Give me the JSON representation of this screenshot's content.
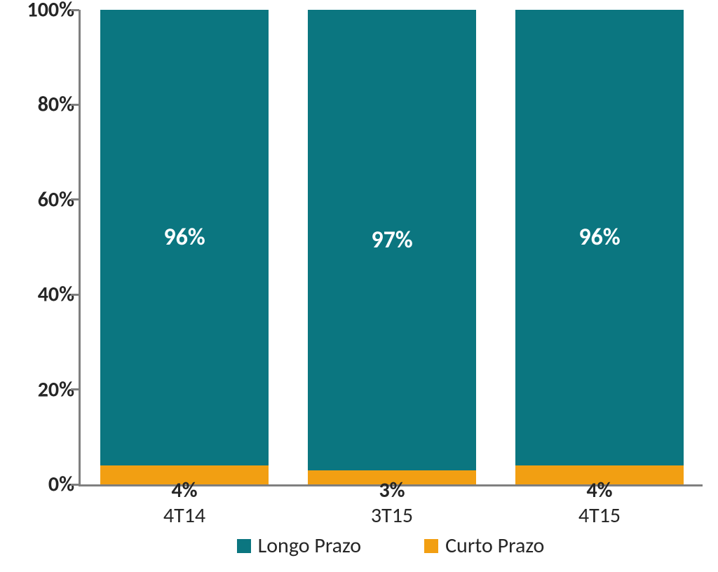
{
  "chart": {
    "type": "stacked-bar-100",
    "background_color": "#ffffff",
    "axis_color": "#7f7f7f",
    "text_color": "#262626",
    "yaxis": {
      "min": 0,
      "max": 100,
      "tick_step": 20,
      "ticks": [
        {
          "v": 0,
          "label": "0%"
        },
        {
          "v": 20,
          "label": "20%"
        },
        {
          "v": 40,
          "label": "40%"
        },
        {
          "v": 60,
          "label": "60%"
        },
        {
          "v": 80,
          "label": "80%"
        },
        {
          "v": 100,
          "label": "100%"
        }
      ],
      "label_fontsize": 30,
      "label_fontweight": 700
    },
    "bar_width_pct": 27,
    "series": {
      "longo": {
        "label": "Longo Prazo",
        "color": "#0b7680",
        "value_color": "#ffffff",
        "value_fontsize": 34
      },
      "curto": {
        "label": "Curto Prazo",
        "color": "#f29f12",
        "value_color": "#262626",
        "value_fontsize": 30
      }
    },
    "categories": [
      {
        "label": "4T14",
        "longo": 96,
        "curto": 4,
        "longo_label": "96%",
        "curto_label": "4%"
      },
      {
        "label": "3T15",
        "longo": 97,
        "curto": 3,
        "longo_label": "97%",
        "curto_label": "3%"
      },
      {
        "label": "4T15",
        "longo": 96,
        "curto": 4,
        "longo_label": "96%",
        "curto_label": "4%"
      }
    ],
    "category_label_fontsize": 30,
    "legend_fontsize": 30
  }
}
